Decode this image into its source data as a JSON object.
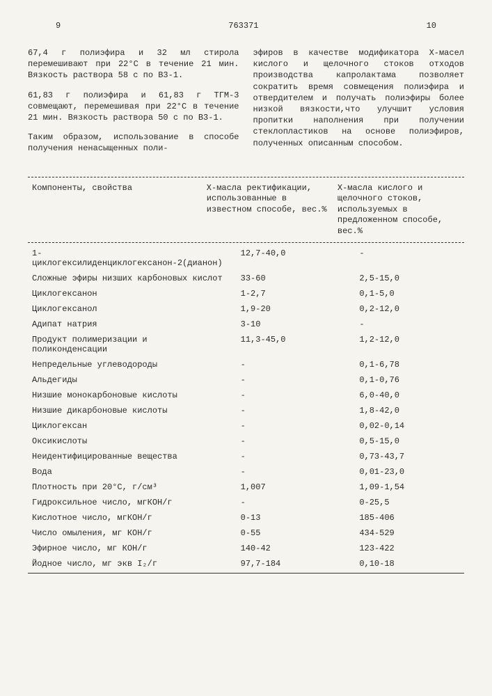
{
  "page_left": "9",
  "page_right": "10",
  "patent_number": "763371",
  "col_left_p1": "67,4 г полиэфира и 32 мл стирола перемешивают при 22°С в течение 21 мин. Вязкость раствора 58 с по В3-1.",
  "col_left_p2": "61,83 г полиэфира и 61,83 г ТГМ-3 совмещают, перемешивая при 22°С в течение 21 мин. Вязкость раствора 50 с по В3-1.",
  "col_left_p3": "Таким образом, использование в способе получения ненасыщенных поли-",
  "col_right_p1": "эфиров в качестве модификатора Х-масел кислого и щелочного стоков отходов производства капролактама позволяет сократить время совмещения полиэфира и отвердителем и получать полиэфиры более низкой вязкости,что улучшит условия пропитки наполнения при получении стеклопластиков на основе полиэфиров, полученных описанным способом.",
  "header_col1": "Компоненты, свойства",
  "header_col2": "Х-масла ректификации, использованные в известном способе, вес.%",
  "header_col3": "Х-масла кислого и щелочного стоков, используемых в предложенном способе, вес.%",
  "rows": [
    {
      "name": "1-циклогексилиденциклогексанон-2(дианон)",
      "v1": "12,7-40,0",
      "v2": "-"
    },
    {
      "name": "Сложные эфиры низших карбоновых кислот",
      "v1": "33-60",
      "v2": "2,5-15,0"
    },
    {
      "name": "Циклогексанон",
      "v1": "1-2,7",
      "v2": "0,1-5,0"
    },
    {
      "name": "Циклогексанол",
      "v1": "1,9-20",
      "v2": "0,2-12,0"
    },
    {
      "name": "Адипат натрия",
      "v1": "3-10",
      "v2": "-"
    },
    {
      "name": "Продукт полимеризации и поликонденсации",
      "v1": "11,3-45,0",
      "v2": "1,2-12,0"
    },
    {
      "name": "Непредельные углеводороды",
      "v1": "-",
      "v2": "0,1-6,78"
    },
    {
      "name": "Альдегиды",
      "v1": "-",
      "v2": "0,1-0,76"
    },
    {
      "name": "Низшие монокарбоновые кислоты",
      "v1": "-",
      "v2": "6,0-40,0"
    },
    {
      "name": "Низшие дикарбоновые кислоты",
      "v1": "-",
      "v2": "1,8-42,0"
    },
    {
      "name": "Циклогексан",
      "v1": "-",
      "v2": "0,02-0,14"
    },
    {
      "name": "Оксикислоты",
      "v1": "-",
      "v2": "0,5-15,0"
    },
    {
      "name": "Неидентифицированные вещества",
      "v1": "-",
      "v2": "0,73-43,7"
    },
    {
      "name": "Вода",
      "v1": "-",
      "v2": "0,01-23,0"
    },
    {
      "name": "Плотность при 20°С, г/см³",
      "v1": "1,007",
      "v2": "1,09-1,54"
    },
    {
      "name": "Гидроксильное число, мгКОН/г",
      "v1": "-",
      "v2": "0-25,5"
    },
    {
      "name": "Кислотное число, мгКОН/г",
      "v1": "0-13",
      "v2": "185-406"
    },
    {
      "name": "Число омыления, мг КОН/г",
      "v1": "0-55",
      "v2": "434-529"
    },
    {
      "name": "Эфирное число, мг КОН/г",
      "v1": "140-42",
      "v2": "123-422"
    },
    {
      "name": "Йодное число, мг экв I₂/г",
      "v1": "97,7-184",
      "v2": "0,10-18"
    }
  ]
}
